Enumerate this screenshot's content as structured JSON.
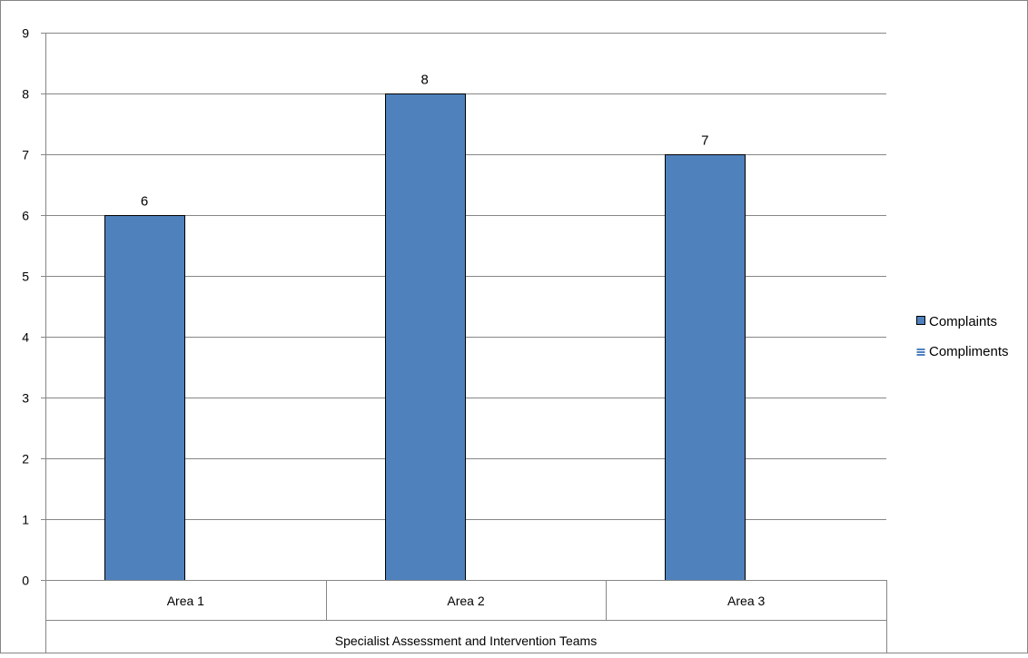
{
  "chart_data": {
    "type": "bar",
    "categories": [
      "Area 1",
      "Area 2",
      "Area 3"
    ],
    "group_label": "Specialist Assessment and Intervention Teams",
    "series": [
      {
        "name": "Complaints",
        "values": [
          6,
          8,
          7
        ],
        "color": "#4F81BD"
      },
      {
        "name": "Compliments",
        "values": [
          0,
          0,
          0
        ],
        "color": "#4F81BD"
      }
    ],
    "data_labels": [
      "6",
      "8",
      "7"
    ],
    "ylim": [
      0,
      9
    ],
    "yticks": [
      0,
      1,
      2,
      3,
      4,
      5,
      6,
      7,
      8,
      9
    ],
    "grid": true,
    "legend_position": "right",
    "title": "",
    "xlabel": "",
    "ylabel": ""
  }
}
